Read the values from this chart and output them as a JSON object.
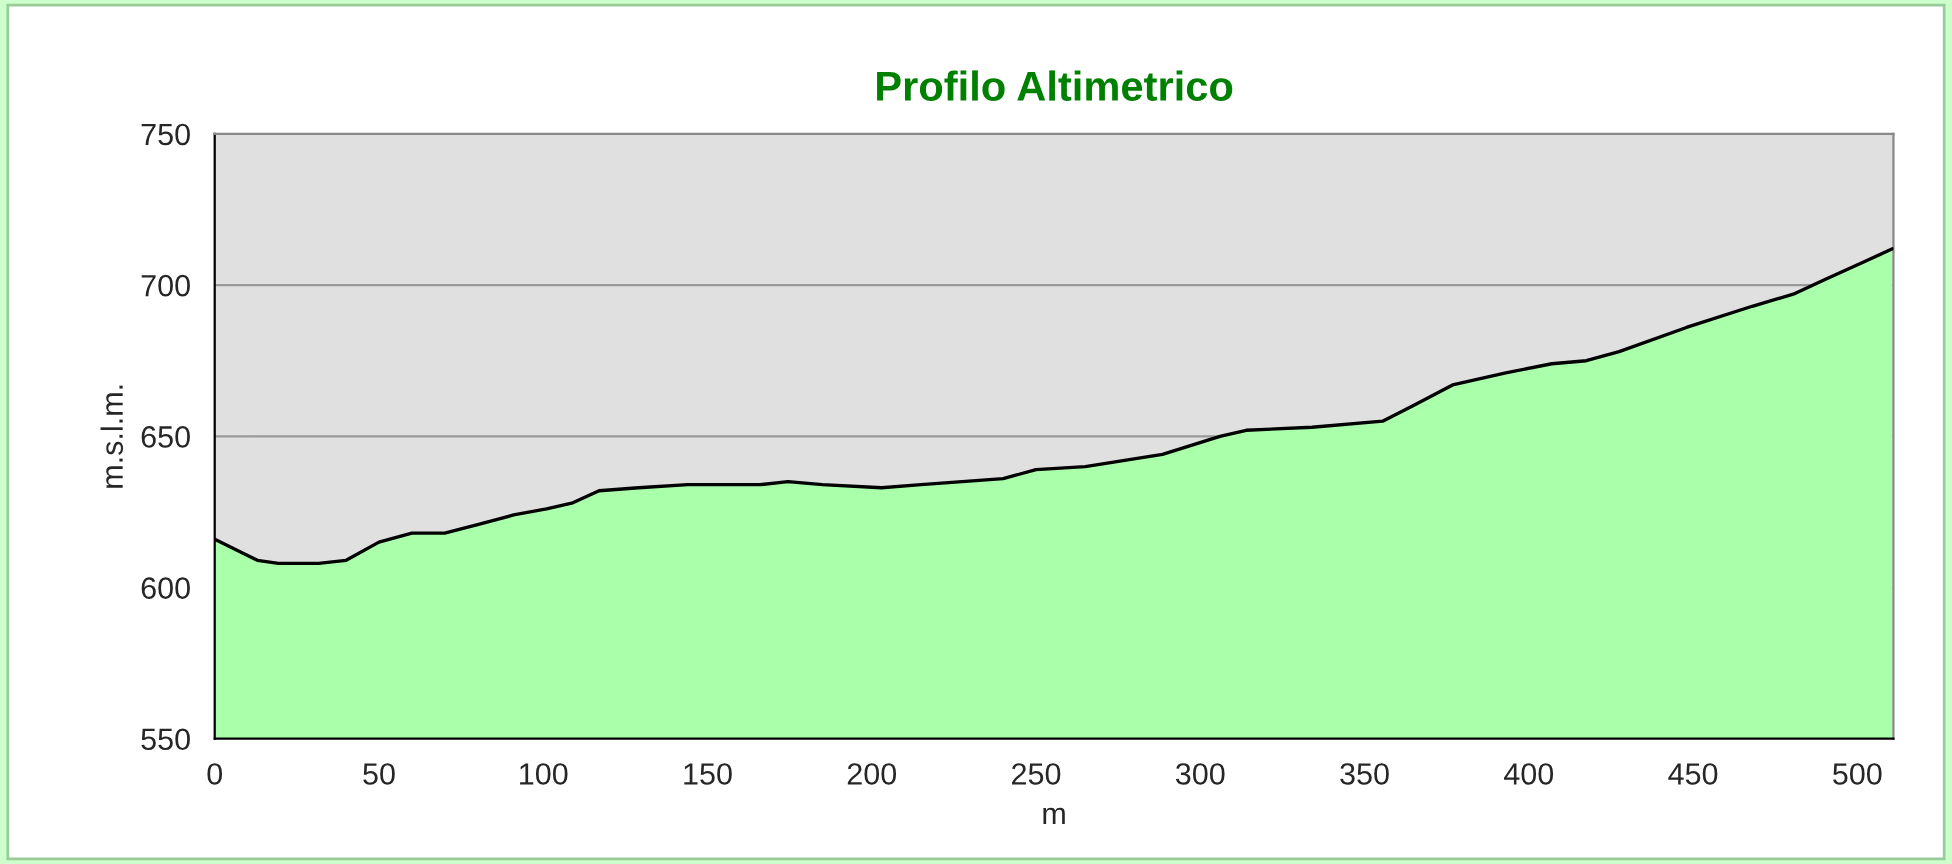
{
  "chart_data": {
    "type": "area",
    "title": "Profilo Altimetrico",
    "xlabel": "m",
    "ylabel": "m.s.l.m.",
    "series": [
      {
        "color": "#aaffaa",
        "x": [
          0,
          13,
          19.4,
          31.6,
          40,
          50,
          60,
          70,
          80.6,
          91,
          101,
          109,
          117,
          129,
          144,
          154,
          166,
          174.5,
          185,
          203,
          215,
          227.5,
          240,
          250,
          265,
          288.5,
          306,
          314,
          334,
          355.5,
          364.6,
          376.8,
          393,
          407,
          417.5,
          427.5,
          448,
          468,
          480.5,
          490.5,
          502.6,
          510.7
        ],
        "values": [
          616,
          609,
          608,
          608,
          609,
          615,
          618,
          618,
          621,
          624,
          626,
          628,
          632,
          633,
          634,
          634,
          634,
          635,
          634,
          633,
          634,
          635,
          636,
          639,
          640,
          644,
          650,
          652,
          653,
          655,
          660,
          667,
          671,
          674,
          675,
          678,
          686,
          693,
          697,
          702,
          708,
          712
        ]
      }
    ],
    "xlim": [
      0,
      511
    ],
    "ylim": [
      550,
      750
    ],
    "xticks": [
      0,
      50,
      100,
      150,
      200,
      250,
      300,
      350,
      400,
      450,
      500
    ],
    "yticks": [
      550,
      600,
      650,
      700,
      750
    ],
    "grid": "y"
  }
}
